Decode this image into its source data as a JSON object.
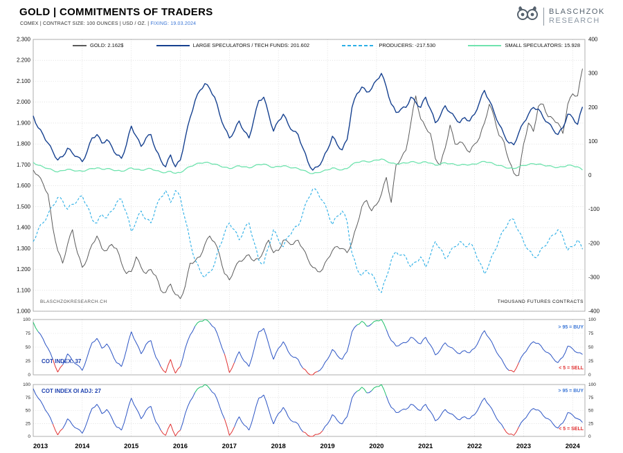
{
  "header": {
    "title": "GOLD | COMMITMENTS OF TRADERS",
    "subtitle_prefix": "COMEX | CONTRACT SIZE: 100 OUNCES | USD / OZ. | ",
    "subtitle_fixing": "FIXING: 19.03.2024",
    "brand": {
      "line1": "BLASCHZOK",
      "line2": "RESEARCH"
    }
  },
  "legend": {
    "items": [
      {
        "label": "GOLD: 2.162$"
      },
      {
        "label": "LARGE SPECULATORS / TECH FUNDS: 201.602"
      },
      {
        "label": "PRODUCERS: -217.530"
      },
      {
        "label": "SMALL SPECULATORS: 15.928"
      }
    ]
  },
  "chart_data": {
    "type": "line",
    "title": "GOLD | COMMITMENTS OF TRADERS",
    "x_domain": [
      2013,
      2024.25
    ],
    "x_ticks": [
      2013,
      2014,
      2015,
      2016,
      2017,
      2018,
      2019,
      2020,
      2021,
      2022,
      2023,
      2024
    ],
    "cot_colors": {
      "line": "#2b54c4",
      "buy": "#1ec06a",
      "sell": "#e03030"
    },
    "main": {
      "watermark": "BLASCHZOKRESEARCH.CH",
      "left_axis": {
        "range": [
          1000,
          2300
        ],
        "ticks": [
          1000,
          1100,
          1200,
          1300,
          1400,
          1500,
          1600,
          1700,
          1800,
          1900,
          2000,
          2100,
          2200,
          2300
        ],
        "unit": "USD/oz"
      },
      "right_axis": {
        "range": [
          -400,
          400
        ],
        "ticks": [
          -400,
          -300,
          -200,
          -100,
          0,
          100,
          200,
          300,
          400
        ],
        "caption": "THOUSAND FUTURES CONTRACTS"
      },
      "series": [
        {
          "id": "gold",
          "name": "GOLD",
          "last_value": 2162,
          "axis": "left",
          "color": "#5a5a5a",
          "style": "solid",
          "x0": 2013.0,
          "dx": 0.1,
          "values": [
            1675,
            1650,
            1610,
            1560,
            1400,
            1290,
            1230,
            1320,
            1390,
            1280,
            1210,
            1250,
            1320,
            1360,
            1300,
            1290,
            1320,
            1300,
            1230,
            1180,
            1190,
            1260,
            1210,
            1180,
            1200,
            1170,
            1100,
            1090,
            1130,
            1080,
            1060,
            1120,
            1230,
            1240,
            1260,
            1320,
            1360,
            1330,
            1270,
            1180,
            1150,
            1200,
            1240,
            1250,
            1270,
            1240,
            1250,
            1290,
            1340,
            1280,
            1290,
            1340,
            1330,
            1320,
            1340,
            1300,
            1250,
            1210,
            1190,
            1200,
            1250,
            1290,
            1310,
            1300,
            1280,
            1330,
            1410,
            1500,
            1530,
            1480,
            1510,
            1560,
            1640,
            1520,
            1700,
            1730,
            1770,
            1900,
            2030,
            1920,
            1880,
            1850,
            1730,
            1700,
            1780,
            1890,
            1800,
            1810,
            1790,
            1760,
            1800,
            1830,
            1900,
            1990,
            1930,
            1840,
            1810,
            1720,
            1660,
            1650,
            1800,
            1900,
            1860,
            1980,
            1990,
            1930,
            1920,
            1900,
            1850,
            1990,
            2040,
            2030,
            2160
          ]
        },
        {
          "id": "large-speculators",
          "name": "LARGE SPECULATORS / TECH FUNDS",
          "last_value": 201.602,
          "axis": "right",
          "color": "#15408f",
          "style": "solid",
          "x0": 2013.0,
          "dx": 0.1,
          "values": [
            175,
            140,
            120,
            95,
            70,
            45,
            55,
            80,
            65,
            55,
            40,
            70,
            110,
            120,
            95,
            105,
            85,
            60,
            50,
            90,
            145,
            115,
            85,
            110,
            120,
            75,
            45,
            25,
            60,
            25,
            45,
            110,
            170,
            220,
            250,
            270,
            255,
            230,
            180,
            140,
            110,
            130,
            160,
            130,
            110,
            165,
            220,
            230,
            180,
            130,
            160,
            180,
            150,
            130,
            120,
            80,
            40,
            15,
            25,
            45,
            75,
            115,
            90,
            75,
            105,
            200,
            240,
            260,
            245,
            255,
            280,
            300,
            260,
            210,
            185,
            195,
            200,
            230,
            215,
            200,
            230,
            195,
            155,
            175,
            205,
            185,
            170,
            155,
            170,
            160,
            180,
            215,
            250,
            220,
            185,
            150,
            120,
            95,
            90,
            125,
            155,
            180,
            200,
            195,
            170,
            155,
            135,
            120,
            140,
            180,
            170,
            150,
            201.6
          ]
        },
        {
          "id": "producers",
          "name": "PRODUCERS",
          "last_value": -217.53,
          "axis": "right",
          "color": "#2aaee6",
          "style": "dashed",
          "x0": 2013.0,
          "dx": 0.1,
          "values": [
            -195,
            -160,
            -140,
            -115,
            -90,
            -65,
            -75,
            -100,
            -85,
            -75,
            -60,
            -90,
            -130,
            -140,
            -115,
            -125,
            -105,
            -80,
            -70,
            -110,
            -165,
            -135,
            -105,
            -130,
            -140,
            -95,
            -65,
            -45,
            -80,
            -45,
            -65,
            -130,
            -195,
            -250,
            -280,
            -300,
            -285,
            -260,
            -210,
            -170,
            -140,
            -160,
            -190,
            -160,
            -140,
            -195,
            -250,
            -260,
            -210,
            -160,
            -190,
            -210,
            -180,
            -160,
            -150,
            -110,
            -70,
            -40,
            -50,
            -75,
            -105,
            -145,
            -120,
            -105,
            -135,
            -230,
            -275,
            -295,
            -280,
            -290,
            -320,
            -345,
            -300,
            -250,
            -225,
            -235,
            -240,
            -270,
            -255,
            -240,
            -270,
            -235,
            -195,
            -215,
            -245,
            -225,
            -210,
            -195,
            -210,
            -200,
            -220,
            -255,
            -290,
            -260,
            -225,
            -190,
            -160,
            -135,
            -130,
            -165,
            -195,
            -220,
            -240,
            -235,
            -210,
            -195,
            -175,
            -160,
            -180,
            -220,
            -210,
            -190,
            -217.5
          ]
        },
        {
          "id": "small-speculators",
          "name": "SMALL SPECULATORS",
          "last_value": 15.928,
          "axis": "right",
          "color": "#6fe3ae",
          "style": "solid",
          "x0": 2013.0,
          "dx": 0.1,
          "values": [
            38,
            30,
            25,
            20,
            15,
            10,
            14,
            18,
            15,
            13,
            12,
            16,
            20,
            22,
            18,
            20,
            17,
            14,
            12,
            16,
            22,
            18,
            15,
            18,
            20,
            14,
            10,
            8,
            12,
            6,
            8,
            18,
            26,
            32,
            36,
            38,
            36,
            33,
            28,
            24,
            20,
            24,
            28,
            25,
            22,
            27,
            32,
            33,
            28,
            23,
            26,
            28,
            25,
            22,
            20,
            15,
            9,
            5,
            8,
            12,
            16,
            22,
            18,
            16,
            20,
            32,
            38,
            42,
            40,
            41,
            45,
            48,
            42,
            36,
            33,
            35,
            36,
            40,
            38,
            36,
            40,
            36,
            30,
            33,
            37,
            34,
            32,
            30,
            32,
            31,
            33,
            37,
            41,
            38,
            33,
            29,
            25,
            21,
            20,
            25,
            29,
            32,
            34,
            33,
            30,
            28,
            25,
            23,
            25,
            30,
            28,
            25,
            15.9
          ]
        }
      ]
    },
    "cot_index": {
      "label": "COT INDEX: 37",
      "last_value": 37,
      "ticks": [
        0,
        25,
        50,
        75,
        100
      ],
      "buy_note": "> 95 = BUY",
      "sell_note": "< 5 = SELL",
      "x0": 2013.0,
      "dx": 0.1,
      "values": [
        95,
        78,
        65,
        48,
        28,
        5,
        18,
        38,
        26,
        18,
        8,
        32,
        58,
        66,
        48,
        56,
        40,
        22,
        15,
        45,
        78,
        58,
        38,
        55,
        62,
        32,
        15,
        4,
        28,
        3,
        15,
        48,
        72,
        88,
        97,
        100,
        94,
        85,
        62,
        38,
        4,
        22,
        42,
        25,
        15,
        45,
        78,
        84,
        56,
        28,
        48,
        60,
        42,
        32,
        28,
        12,
        3,
        0,
        6,
        14,
        28,
        46,
        35,
        28,
        42,
        78,
        90,
        97,
        88,
        92,
        98,
        100,
        82,
        62,
        52,
        56,
        58,
        68,
        62,
        56,
        68,
        54,
        36,
        45,
        58,
        50,
        44,
        38,
        44,
        40,
        48,
        64,
        80,
        66,
        50,
        34,
        20,
        8,
        5,
        22,
        38,
        50,
        60,
        57,
        46,
        40,
        30,
        22,
        32,
        52,
        47,
        40,
        37
      ]
    },
    "cot_index_oi": {
      "label": "COT INDEX OI ADJ: 27",
      "last_value": 27,
      "ticks": [
        0,
        25,
        50,
        75,
        100
      ],
      "buy_note": "> 95 = BUY",
      "sell_note": "< 5 = SELL",
      "x0": 2013.0,
      "dx": 0.1,
      "values": [
        92,
        74,
        60,
        44,
        24,
        3,
        15,
        34,
        22,
        15,
        6,
        28,
        54,
        62,
        44,
        52,
        36,
        18,
        12,
        42,
        74,
        54,
        34,
        50,
        58,
        28,
        12,
        2,
        24,
        1,
        12,
        44,
        68,
        85,
        95,
        100,
        92,
        82,
        58,
        34,
        2,
        18,
        38,
        22,
        12,
        42,
        74,
        80,
        52,
        24,
        44,
        56,
        38,
        28,
        24,
        9,
        2,
        0,
        4,
        11,
        24,
        42,
        31,
        24,
        38,
        74,
        87,
        95,
        84,
        88,
        96,
        100,
        78,
        56,
        46,
        50,
        52,
        62,
        56,
        50,
        62,
        48,
        30,
        39,
        52,
        44,
        38,
        32,
        38,
        34,
        42,
        58,
        74,
        60,
        44,
        28,
        15,
        4,
        2,
        18,
        32,
        44,
        54,
        51,
        40,
        34,
        24,
        16,
        26,
        46,
        41,
        34,
        27
      ]
    }
  }
}
